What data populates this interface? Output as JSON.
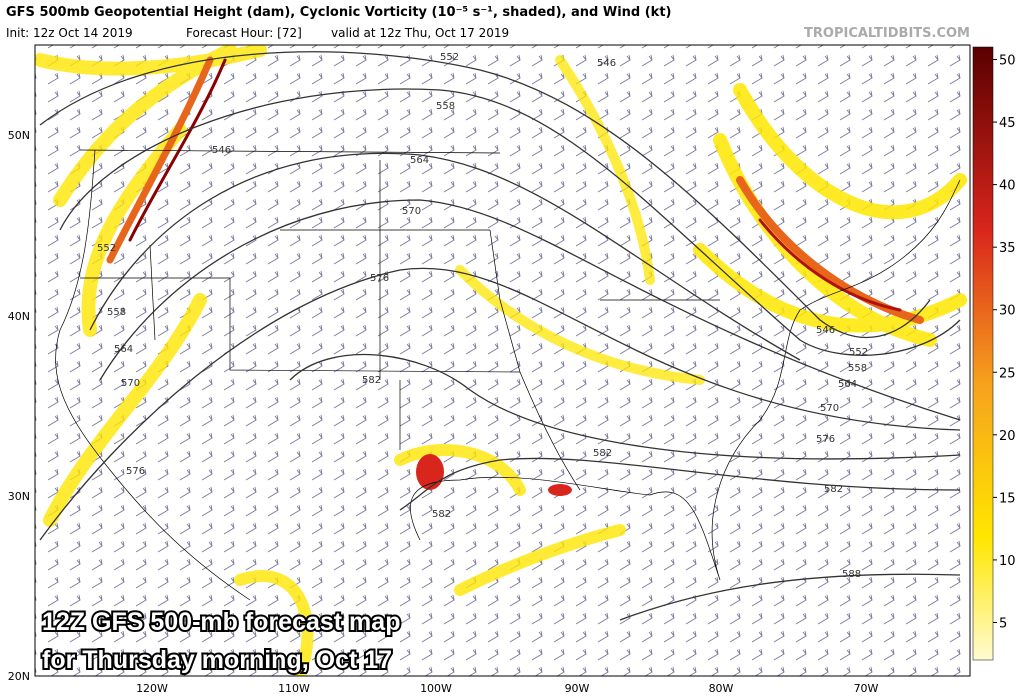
{
  "header": {
    "title": "GFS 500mb Geopotential Height (dam), Cyclonic Vorticity (10⁻⁵ s⁻¹, shaded), and Wind (kt)",
    "init": "Init: 12z Oct 14 2019",
    "forecast_hour": "Forecast Hour: [72]",
    "valid": "valid at 12z Thu, Oct 17 2019",
    "brand": "TROPICALTIDBITS.COM"
  },
  "colorbar": {
    "range": [
      2,
      51
    ],
    "ticks": [
      5,
      10,
      15,
      20,
      25,
      30,
      35,
      40,
      45,
      50
    ]
  },
  "map": {
    "lat_labels": [
      "50N",
      "40N",
      "30N",
      "20N"
    ],
    "lon_labels": [
      "120W",
      "110W",
      "100W",
      "90W",
      "80W",
      "70W"
    ],
    "contour_labels": [
      "552",
      "558",
      "546",
      "564",
      "570",
      "576",
      "582",
      "546",
      "552",
      "558",
      "564",
      "570",
      "576",
      "582",
      "582",
      "546",
      "552",
      "558",
      "564",
      "570",
      "576",
      "582",
      "588"
    ]
  },
  "caption": [
    "12Z GFS 500-mb forecast map",
    "for Thursday morning, Oct 17"
  ]
}
